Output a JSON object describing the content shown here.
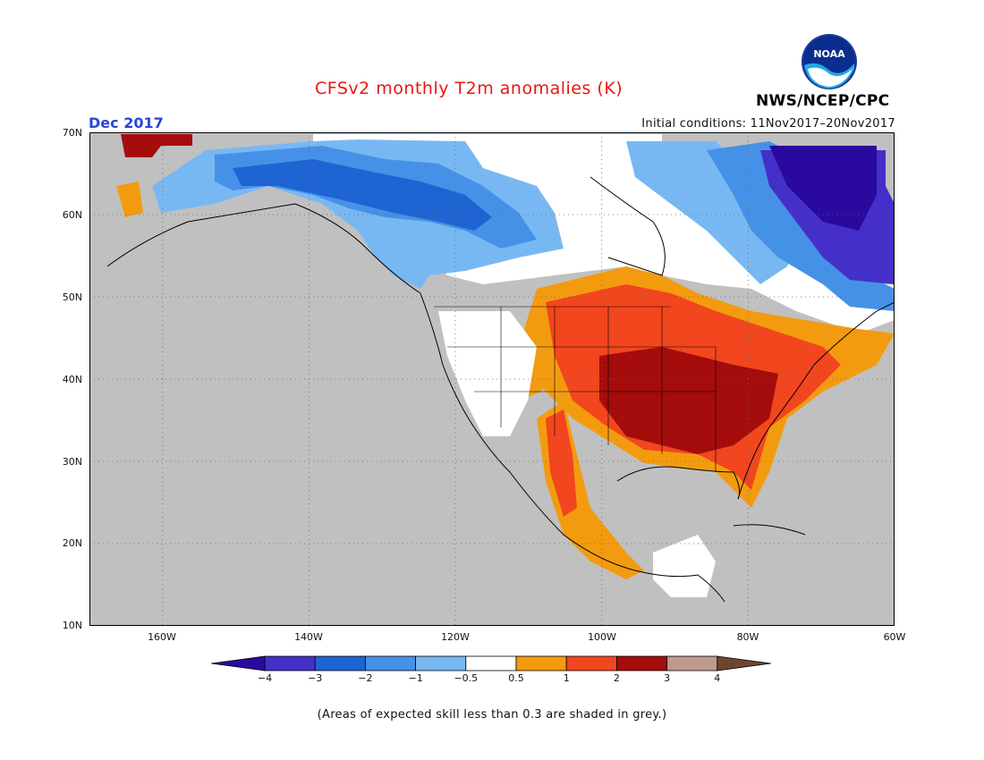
{
  "header": {
    "title": "CFSv2 monthly T2m anomalies (K)",
    "valid_month": "Dec 2017",
    "initial_conditions": "Initial conditions: 11Nov2017–20Nov2017",
    "agency": "NWS/NCEP/CPC",
    "logo_text": "NOAA"
  },
  "map": {
    "lat_labels": [
      "70N",
      "60N",
      "50N",
      "40N",
      "30N",
      "20N",
      "10N"
    ],
    "lon_labels": [
      "160W",
      "140W",
      "120W",
      "100W",
      "80W",
      "60W"
    ],
    "lat_range": [
      10,
      70
    ],
    "lon_range": [
      -170,
      -60
    ],
    "background_color": "#c0c0c0"
  },
  "colorbar": {
    "ticks": [
      "−4",
      "−3",
      "−2",
      "−1",
      "−0.5",
      "0.5",
      "1",
      "2",
      "3",
      "4"
    ],
    "colors": [
      "#2a0a9e",
      "#4430c8",
      "#1e64d2",
      "#4691e8",
      "#78b8f2",
      "#ffffff",
      "#f39b0f",
      "#f2461e",
      "#a50c0c",
      "#bf9a8c",
      "#6e4630"
    ]
  },
  "footnote": "(Areas of expected skill less than 0.3 are shaded in grey.)"
}
